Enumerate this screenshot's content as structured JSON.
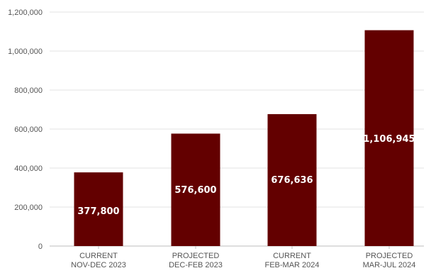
{
  "chart_data": {
    "type": "bar",
    "categories": [
      [
        "CURRENT",
        "NOV-DEC 2023"
      ],
      [
        "PROJECTED",
        "DEC-FEB 2023"
      ],
      [
        "CURRENT",
        "FEB-MAR 2024"
      ],
      [
        "PROJECTED",
        "MAR-JUL 2024"
      ]
    ],
    "values": [
      377800,
      576600,
      676636,
      1106945
    ],
    "data_labels": [
      "377,800",
      "576,600",
      "676,636",
      "1,106,945"
    ],
    "ylim": [
      0,
      1200000
    ],
    "yticks": [
      0,
      200000,
      400000,
      600000,
      800000,
      1000000,
      1200000
    ],
    "ytick_labels": [
      "0",
      "200,000",
      "400,000",
      "600,000",
      "800,000",
      "1,000,000",
      "1,200,000"
    ],
    "grid": true,
    "legend": "none",
    "title": "",
    "xlabel": "",
    "ylabel": "",
    "bar_color": "#630000",
    "label_color": "#ffffff"
  }
}
